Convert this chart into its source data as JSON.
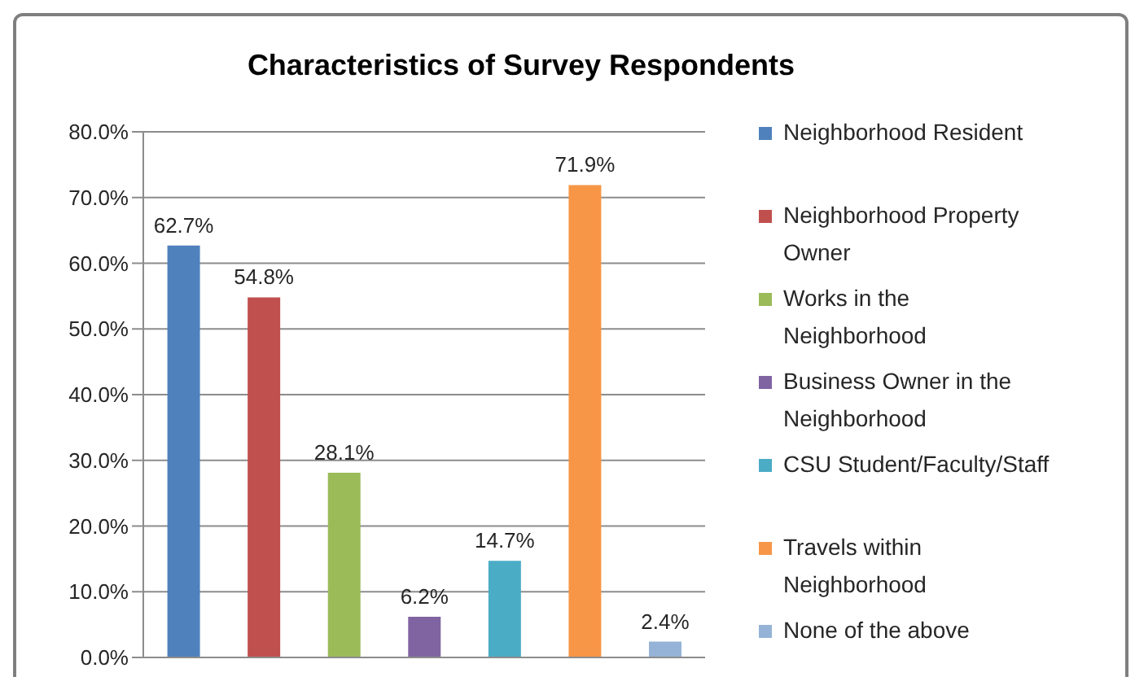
{
  "chart_data": {
    "type": "bar",
    "title": "Characteristics of Survey Respondents",
    "categories": [
      null,
      null,
      null,
      null,
      null,
      null,
      null
    ],
    "series": [
      {
        "name": "Neighborhood Resident",
        "color": "#4f81bd",
        "values": [
          62.7,
          null,
          null,
          null,
          null,
          null,
          null
        ],
        "value_labels": [
          "62.7%",
          null,
          null,
          null,
          null,
          null,
          null
        ]
      },
      {
        "name": "Neighborhood Property Owner",
        "color": "#c0504d",
        "values": [
          null,
          54.8,
          null,
          null,
          null,
          null,
          null
        ],
        "value_labels": [
          null,
          "54.8%",
          null,
          null,
          null,
          null,
          null
        ]
      },
      {
        "name": "Works in the Neighborhood",
        "color": "#9bbb59",
        "values": [
          null,
          null,
          28.1,
          null,
          null,
          null,
          null
        ],
        "value_labels": [
          null,
          null,
          "28.1%",
          null,
          null,
          null,
          null
        ]
      },
      {
        "name": "Business Owner in the Neighborhood",
        "color": "#8064a2",
        "values": [
          null,
          null,
          null,
          6.2,
          null,
          null,
          null
        ],
        "value_labels": [
          null,
          null,
          null,
          "6.2%",
          null,
          null,
          null
        ]
      },
      {
        "name": "CSU Student/Faculty/Staff",
        "color": "#4bacc6",
        "values": [
          null,
          null,
          null,
          null,
          14.7,
          null,
          null
        ],
        "value_labels": [
          null,
          null,
          null,
          null,
          "14.7%",
          null,
          null
        ]
      },
      {
        "name": "Travels within Neighborhood",
        "color": "#f79646",
        "values": [
          null,
          null,
          null,
          null,
          null,
          71.9,
          null
        ],
        "value_labels": [
          null,
          null,
          null,
          null,
          null,
          "71.9%",
          null
        ]
      },
      {
        "name": "None of the above",
        "color": "#95b3d7",
        "values": [
          null,
          null,
          null,
          null,
          null,
          null,
          2.4
        ],
        "value_labels": [
          null,
          null,
          null,
          null,
          null,
          null,
          "2.4%"
        ]
      }
    ],
    "ylim": [
      0,
      80
    ],
    "yticks": [
      {
        "value": 0,
        "label": "0.0%"
      },
      {
        "value": 10,
        "label": "10.0%"
      },
      {
        "value": 20,
        "label": "20.0%"
      },
      {
        "value": 30,
        "label": "30.0%"
      },
      {
        "value": 40,
        "label": "40.0%"
      },
      {
        "value": 50,
        "label": "50.0%"
      },
      {
        "value": 60,
        "label": "60.0%"
      },
      {
        "value": 70,
        "label": "70.0%"
      },
      {
        "value": 80,
        "label": "80.0%"
      }
    ],
    "grid": "y",
    "legend": "right"
  }
}
